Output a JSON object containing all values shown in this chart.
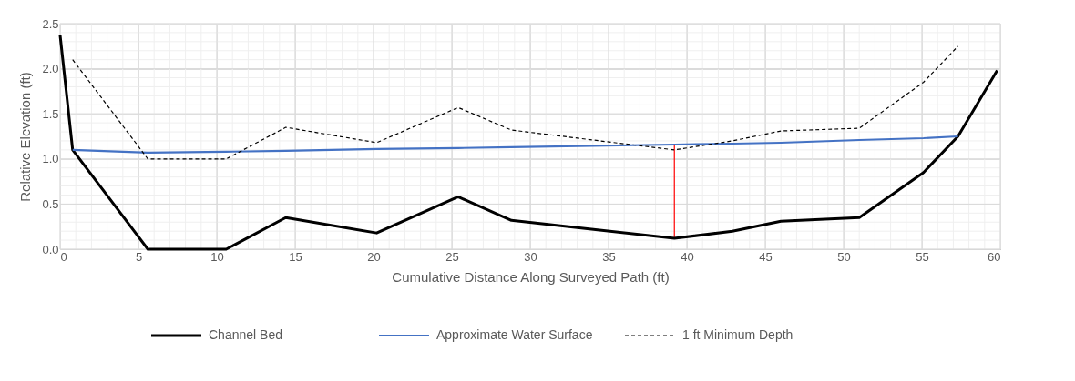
{
  "chart_data": {
    "type": "line",
    "xlabel": "Cumulative Distance Along Surveyed Path (ft)",
    "ylabel": "Relative Elevation (ft)",
    "xlim": [
      0,
      60
    ],
    "xticks": [
      0,
      5,
      10,
      15,
      20,
      25,
      30,
      35,
      40,
      45,
      50,
      55,
      60
    ],
    "ylim": [
      0,
      2.5
    ],
    "yticks": [
      {
        "value": 0,
        "label": "0.0"
      },
      0.5,
      {
        "value": 1,
        "label": "1.0"
      },
      1.5,
      {
        "value": 2,
        "label": "2.0"
      },
      2.5
    ],
    "grid": true,
    "legend": "bottom",
    "marker": "none",
    "series": [
      {
        "name": "Channel Bed",
        "color": "#000000",
        "line_style": "solid",
        "x": [
          0,
          0.8,
          5.6,
          10.6,
          14.4,
          20.2,
          25.4,
          28.8,
          39.2,
          42.9,
          46.0,
          51.0,
          55.1,
          57.3,
          59.8
        ],
        "values": [
          2.37,
          1.1,
          0,
          0,
          0.35,
          0.18,
          0.58,
          0.32,
          0.12,
          0.2,
          0.31,
          0.35,
          0.85,
          1.25,
          1.98
        ]
      },
      {
        "name": "Approximate Water Surface",
        "color": "#4472c4",
        "line_style": "solid",
        "x": [
          0.8,
          5.6,
          10.6,
          14.4,
          20.2,
          25.4,
          28.8,
          39.2,
          42.9,
          46.0,
          51.0,
          55.1,
          57.3
        ],
        "values": [
          1.1,
          1.07,
          1.08,
          1.09,
          1.11,
          1.12,
          1.13,
          1.16,
          1.17,
          1.18,
          1.21,
          1.23,
          1.25
        ]
      },
      {
        "name": "1 ft Minimum Depth",
        "color": "#000000",
        "line_style": "dashed",
        "x": [
          0.8,
          5.6,
          10.6,
          14.4,
          20.2,
          25.4,
          28.8,
          39.2,
          42.9,
          46.0,
          51.0,
          55.1,
          57.3
        ],
        "values": [
          2.1,
          1.0,
          1.0,
          1.35,
          1.18,
          1.57,
          1.32,
          1.1,
          1.2,
          1.31,
          1.34,
          1.85,
          2.25
        ]
      },
      {
        "color": "#ff0000",
        "line_style": "solid",
        "x": [
          39.2,
          39.2
        ],
        "values": [
          0.12,
          1.16
        ]
      }
    ]
  }
}
